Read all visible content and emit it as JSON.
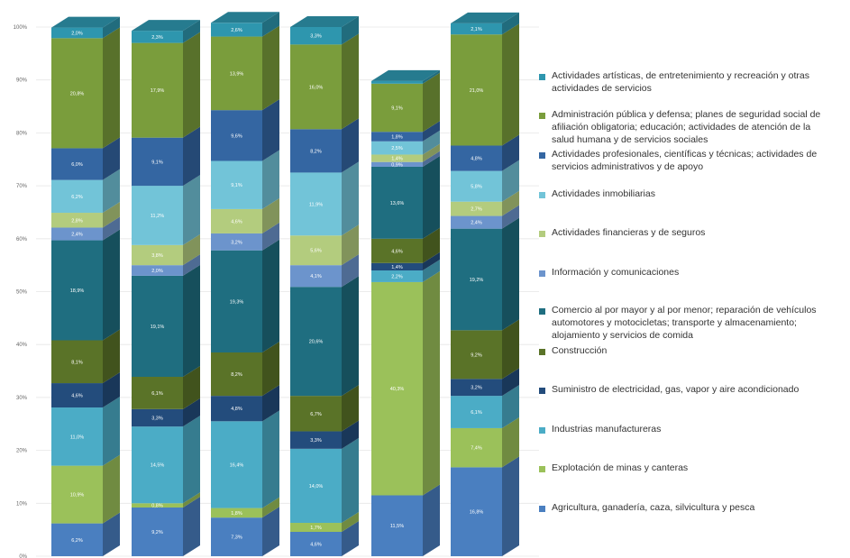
{
  "chart_data": {
    "type": "bar",
    "stacked": "percent",
    "ylim": [
      0,
      100
    ],
    "y_ticks": [
      "0%",
      "10%",
      "20%",
      "30%",
      "40%",
      "50%",
      "60%",
      "70%",
      "80%",
      "90%",
      "100%"
    ],
    "grid": true,
    "legend_position": "right",
    "series": [
      {
        "name": "Agricultura, ganadería, caza, silvicultura y pesca",
        "color": "#4a7fc0",
        "values": [
          6.2,
          9.2,
          7.3,
          4.6,
          11.5,
          16.8
        ],
        "labels": [
          "6,2%",
          "9,2%",
          "7,3%",
          "4,6%",
          "11,5%",
          "16,8%"
        ]
      },
      {
        "name": "Explotación de minas y canteras",
        "color": "#9bc15a",
        "values": [
          10.9,
          0.8,
          1.8,
          1.7,
          40.3,
          7.4
        ],
        "labels": [
          "10,9%",
          "0,8%",
          "1,8%",
          "1,7%",
          "40,3%",
          "7,4%"
        ]
      },
      {
        "name": "Industrias manufactureras",
        "color": "#4bacc6",
        "values": [
          11.0,
          14.5,
          16.4,
          14.0,
          2.2,
          6.1
        ],
        "labels": [
          "11,0%",
          "14,5%",
          "16,4%",
          "14,0%",
          "2,2%",
          "6,1%"
        ]
      },
      {
        "name": "Suministro de electricidad, gas, vapor y aire acondicionado",
        "color": "#234c7c",
        "values": [
          4.6,
          3.3,
          4.8,
          3.3,
          1.4,
          3.2
        ],
        "labels": [
          "4,6%",
          "3,3%",
          "4,8%",
          "3,3%",
          "1,4%",
          "3,2%"
        ]
      },
      {
        "name": "Construcción",
        "color": "#5a7328",
        "values": [
          8.1,
          6.1,
          8.2,
          6.7,
          4.6,
          9.2
        ],
        "labels": [
          "8,1%",
          "6,1%",
          "8,2%",
          "6,7%",
          "4,6%",
          "9,2%"
        ]
      },
      {
        "name": "Comercio al por mayor y al por menor; reparación de vehículos automotores y motocicletas; transporte y almacenamiento; alojamiento y servicios de comida",
        "color": "#1f6e80",
        "values": [
          18.9,
          19.1,
          19.3,
          20.6,
          13.6,
          19.2
        ],
        "labels": [
          "18,9%",
          "19,1%",
          "19,3%",
          "20,6%",
          "13,6%",
          "19,2%"
        ]
      },
      {
        "name": "Información y comunicaciones",
        "color": "#6c94cc",
        "values": [
          2.4,
          2.0,
          3.2,
          4.1,
          0.9,
          2.4
        ],
        "labels": [
          "2,4%",
          "2,0%",
          "3,2%",
          "4,1%",
          "0,9%",
          "2,4%"
        ]
      },
      {
        "name": "Actividades financieras y de seguros",
        "color": "#b3cc7e",
        "values": [
          2.8,
          3.8,
          4.6,
          5.6,
          1.4,
          2.7
        ],
        "labels": [
          "2,8%",
          "3,8%",
          "4,6%",
          "5,6%",
          "1,4%",
          "2,7%"
        ]
      },
      {
        "name": "Actividades inmobiliarias",
        "color": "#72c4d8",
        "values": [
          6.2,
          11.2,
          9.1,
          11.9,
          2.5,
          5.8
        ],
        "labels": [
          "6,2%",
          "11,2%",
          "9,1%",
          "11,9%",
          "2,5%",
          "5,8%"
        ]
      },
      {
        "name": "Actividades profesionales, científicas y técnicas; actividades de servicios administrativos y de apoyo",
        "color": "#3466a2",
        "values": [
          6.0,
          9.1,
          9.6,
          8.2,
          1.8,
          4.8
        ],
        "labels": [
          "6,0%",
          "9,1%",
          "9,6%",
          "8,2%",
          "1,8%",
          "4,8%"
        ]
      },
      {
        "name": "Administración pública y defensa; planes de seguridad social de afiliación obligatoria; educación; actividades de atención de la salud humana y de servicios sociales",
        "color": "#7a9d3c",
        "values": [
          20.8,
          17.9,
          13.9,
          16.0,
          9.1,
          21.0
        ],
        "labels": [
          "20,8%",
          "17,9%",
          "13,9%",
          "16,0%",
          "9,1%",
          "21,0%"
        ]
      },
      {
        "name": "Actividades artísticas, de entretenimiento y recreación y otras actividades de servicios",
        "color": "#2e96ae",
        "values": [
          2.0,
          2.3,
          2.6,
          3.3,
          0.5,
          2.1
        ],
        "labels": [
          "2,0%",
          "2,3%",
          "2,6%",
          "3,3%",
          "0,5%",
          "2,1%"
        ]
      }
    ]
  }
}
